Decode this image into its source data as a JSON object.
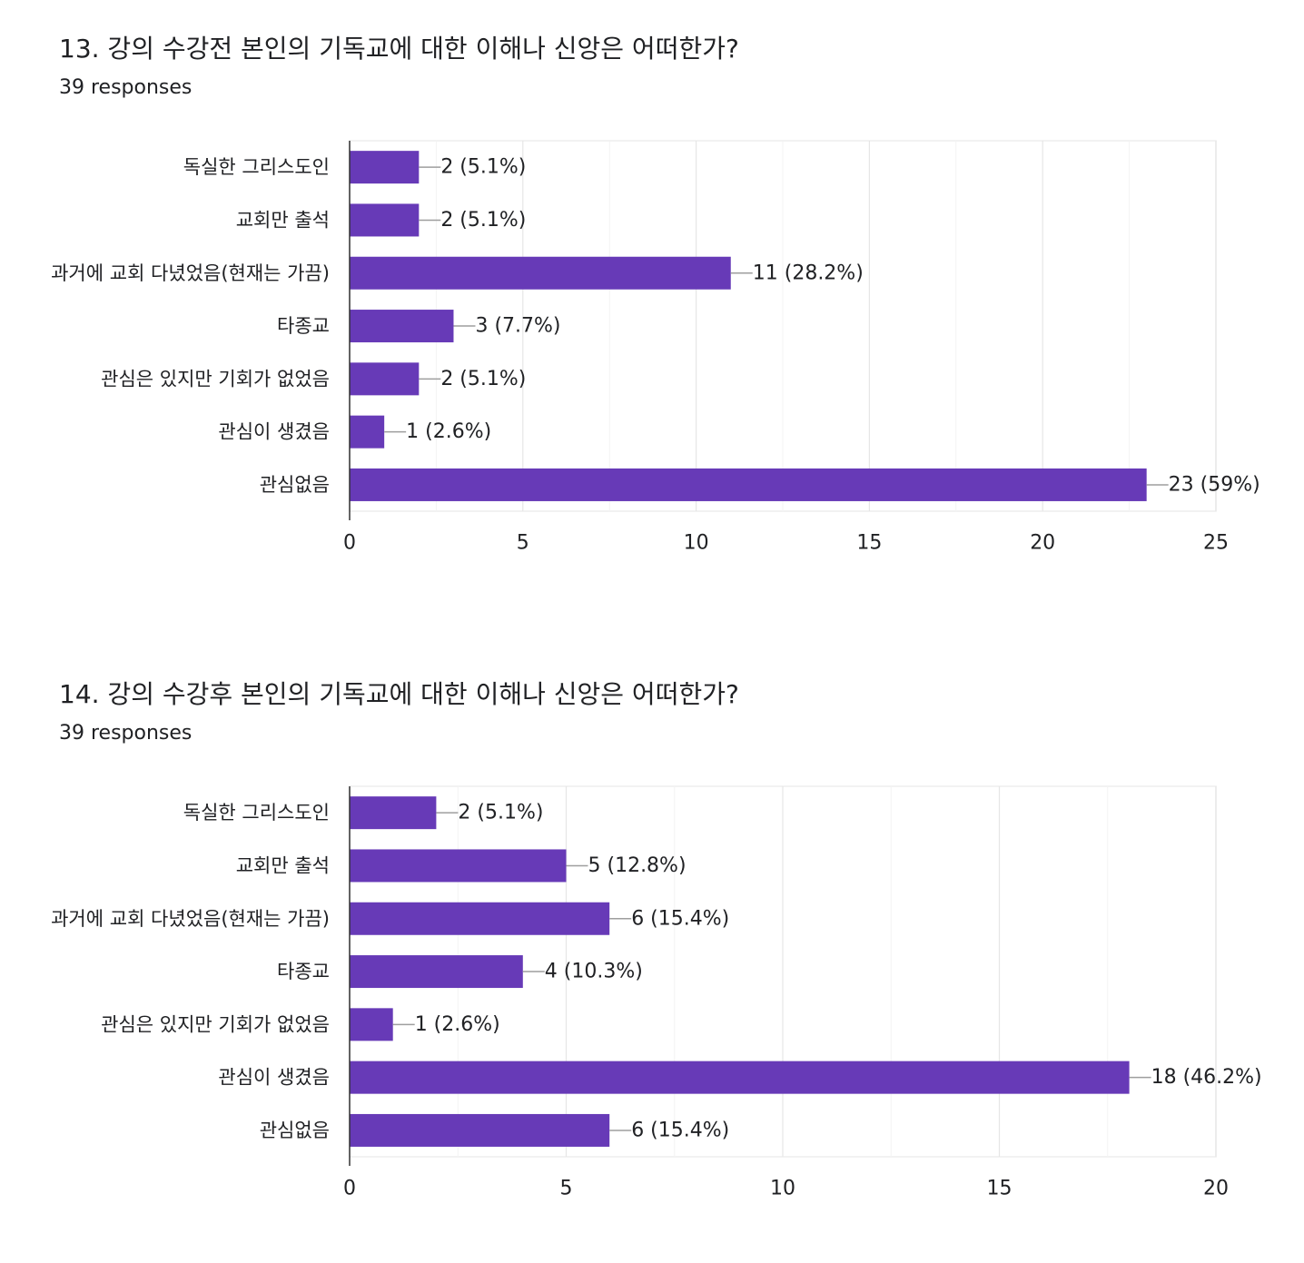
{
  "charts": [
    {
      "title": "13. 강의 수강전 본인의 기독교에 대한 이해나 신앙은 어떠한가?",
      "subtitle": "39 responses"
    },
    {
      "title": "14. 강의 수강후 본인의 기독교에 대한 이해나 신앙은 어떠한가?",
      "subtitle": "39 responses"
    }
  ],
  "chart_data": [
    {
      "type": "bar",
      "orientation": "horizontal",
      "title": "13. 강의 수강전 본인의 기독교에 대한 이해나 신앙은 어떠한가?",
      "categories": [
        "독실한 그리스도인",
        "교회만 출석",
        "과거에 교회 다녔었음(현재는 가끔)",
        "타종교",
        "관심은 있지만 기회가 없었음",
        "관심이 생겼음",
        "관심없음"
      ],
      "values": [
        2,
        2,
        11,
        3,
        2,
        1,
        23
      ],
      "data_labels": [
        "2 (5.1%)",
        "2 (5.1%)",
        "11 (28.2%)",
        "3 (7.7%)",
        "2 (5.1%)",
        "1 (2.6%)",
        "23 (59%)"
      ],
      "xlim": [
        0,
        25
      ],
      "xticks": [
        0,
        5,
        10,
        15,
        20,
        25
      ],
      "grid": true,
      "bar_color": "#673ab7"
    },
    {
      "type": "bar",
      "orientation": "horizontal",
      "title": "14. 강의 수강후 본인의 기독교에 대한 이해나 신앙은 어떠한가?",
      "categories": [
        "독실한 그리스도인",
        "교회만 출석",
        "과거에 교회 다녔었음(현재는 가끔)",
        "타종교",
        "관심은 있지만 기회가 없었음",
        "관심이 생겼음",
        "관심없음"
      ],
      "values": [
        2,
        5,
        6,
        4,
        1,
        18,
        6
      ],
      "data_labels": [
        "2 (5.1%)",
        "5 (12.8%)",
        "6 (15.4%)",
        "4 (10.3%)",
        "1 (2.6%)",
        "18 (46.2%)",
        "6 (15.4%)"
      ],
      "xlim": [
        0,
        20
      ],
      "xticks": [
        0,
        5,
        10,
        15,
        20
      ],
      "grid": true,
      "bar_color": "#673ab7"
    }
  ]
}
